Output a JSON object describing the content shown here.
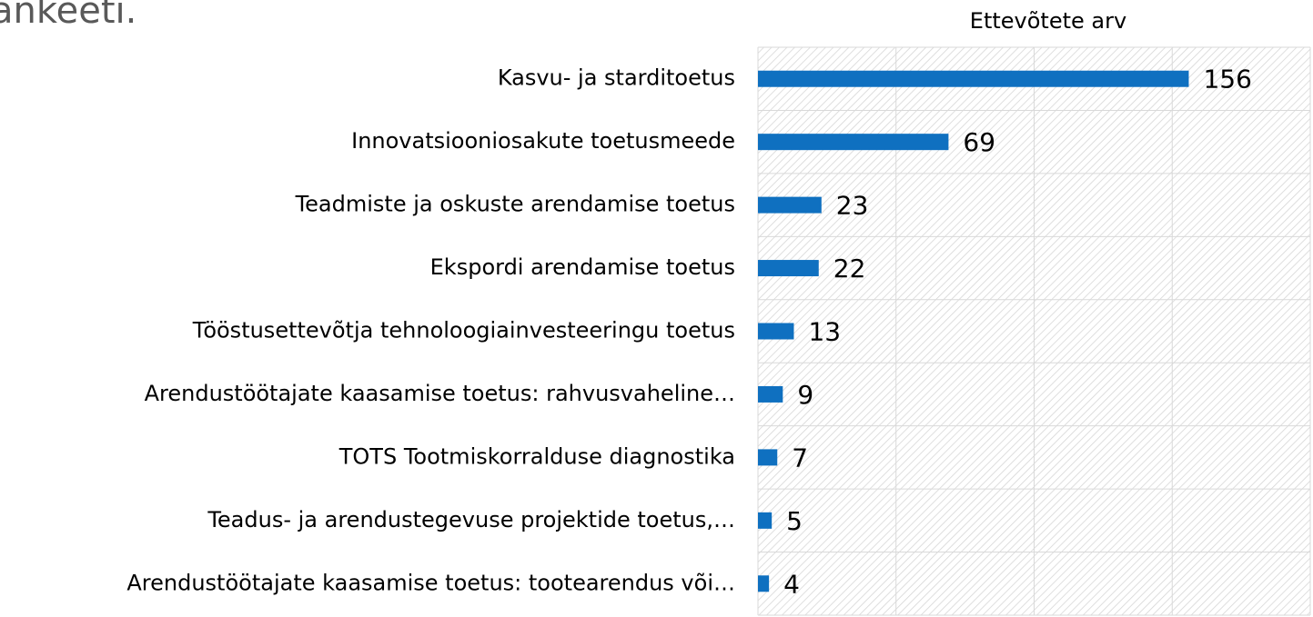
{
  "chart_data": {
    "type": "bar",
    "orientation": "horizontal",
    "title": "ankeeti.",
    "xlabel": "Ettevõtete arv",
    "categories": [
      "Kasvu- ja starditoetus",
      "Innovatsiooniosakute toetusmeede",
      "Teadmiste ja oskuste arendamise toetus",
      "Ekspordi arendamise toetus",
      "Tööstusettevõtja tehnoloogiainvesteeringu toetus",
      "Arendustöötajate kaasamise toetus: rahvusvaheline…",
      "TOTS Tootmiskorralduse diagnostika",
      "Teadus- ja arendustegevuse projektide toetus,…",
      "Arendustöötajate kaasamise toetus: tootearendus või…"
    ],
    "values": [
      156,
      69,
      23,
      22,
      13,
      9,
      7,
      5,
      4
    ],
    "color": "#0f70c0",
    "xlim": [
      0,
      200
    ],
    "xticks": [
      0,
      50,
      100,
      150,
      200
    ],
    "grid": true
  }
}
